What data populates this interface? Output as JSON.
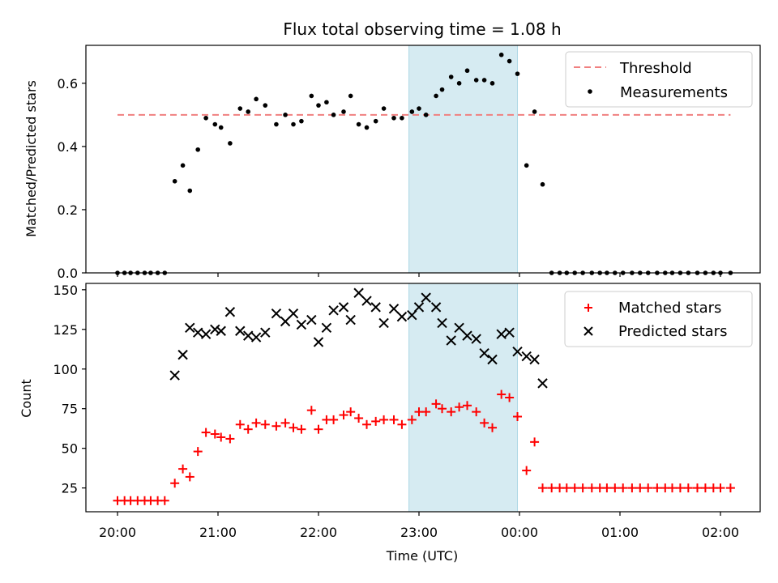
{
  "chart_data": [
    {
      "type": "scatter",
      "title": "Flux total observing time = 1.08 h",
      "ylabel": "Matched/Predicted stars",
      "xlabel": "",
      "ylim": [
        0,
        0.72
      ],
      "yticks": [
        0.0,
        0.2,
        0.4,
        0.6
      ],
      "ytick_labels": [
        "0.0",
        "0.2",
        "0.4",
        "0.6"
      ],
      "xticks_hours": [
        0,
        1,
        2,
        3,
        4,
        5,
        6
      ],
      "legend_position": "top-right",
      "threshold": {
        "name": "Threshold",
        "value": 0.5,
        "x_start": 0.0,
        "x_end": 6.1,
        "color": "#f08080"
      },
      "highlight_span": {
        "x_start": 2.9,
        "x_end": 3.98,
        "color": "#add8e6"
      },
      "series": [
        {
          "name": "Measurements",
          "color": "#000000",
          "x": [
            0.0,
            0.07,
            0.13,
            0.2,
            0.27,
            0.33,
            0.4,
            0.47,
            0.57,
            0.65,
            0.72,
            0.8,
            0.88,
            0.97,
            1.03,
            1.12,
            1.22,
            1.3,
            1.38,
            1.47,
            1.58,
            1.67,
            1.75,
            1.83,
            1.93,
            2.0,
            2.08,
            2.15,
            2.25,
            2.32,
            2.4,
            2.48,
            2.57,
            2.65,
            2.75,
            2.83,
            2.93,
            3.0,
            3.07,
            3.17,
            3.23,
            3.32,
            3.4,
            3.48,
            3.57,
            3.65,
            3.73,
            3.82,
            3.9,
            3.98,
            4.07,
            4.15,
            4.23,
            4.32,
            4.4,
            4.47,
            4.55,
            4.63,
            4.72,
            4.8,
            4.87,
            4.95,
            5.03,
            5.12,
            5.2,
            5.28,
            5.37,
            5.45,
            5.52,
            5.6,
            5.68,
            5.77,
            5.85,
            5.93,
            6.0,
            6.1
          ],
          "values": [
            0.0,
            0.0,
            0.0,
            0.0,
            0.0,
            0.0,
            0.0,
            0.0,
            0.29,
            0.34,
            0.26,
            0.39,
            0.49,
            0.47,
            0.46,
            0.41,
            0.52,
            0.51,
            0.55,
            0.53,
            0.47,
            0.5,
            0.47,
            0.48,
            0.56,
            0.53,
            0.54,
            0.5,
            0.51,
            0.56,
            0.47,
            0.46,
            0.48,
            0.52,
            0.49,
            0.49,
            0.51,
            0.52,
            0.5,
            0.56,
            0.58,
            0.62,
            0.6,
            0.64,
            0.61,
            0.61,
            0.6,
            0.69,
            0.67,
            0.63,
            0.34,
            0.51,
            0.28,
            0.0,
            0.0,
            0.0,
            0.0,
            0.0,
            0.0,
            0.0,
            0.0,
            0.0,
            0.0,
            0.0,
            0.0,
            0.0,
            0.0,
            0.0,
            0.0,
            0.0,
            0.0,
            0.0,
            0.0,
            0.0,
            0.0,
            0.0
          ]
        }
      ]
    },
    {
      "type": "scatter",
      "title": "",
      "ylabel": "Count",
      "xlabel": "Time (UTC)",
      "ylim": [
        10,
        154
      ],
      "yticks": [
        25,
        50,
        75,
        100,
        125,
        150
      ],
      "ytick_labels": [
        "25",
        "50",
        "75",
        "100",
        "125",
        "150"
      ],
      "xticks_hours": [
        0,
        1,
        2,
        3,
        4,
        5,
        6
      ],
      "xtick_labels": [
        "20:00",
        "21:00",
        "22:00",
        "23:00",
        "00:00",
        "01:00",
        "02:00"
      ],
      "legend_position": "top-right",
      "highlight_span": {
        "x_start": 2.9,
        "x_end": 3.98,
        "color": "#add8e6"
      },
      "series": [
        {
          "name": "Matched stars",
          "color": "#ff0000",
          "marker": "+",
          "x": [
            0.0,
            0.07,
            0.13,
            0.2,
            0.27,
            0.33,
            0.4,
            0.47,
            0.57,
            0.65,
            0.72,
            0.8,
            0.88,
            0.97,
            1.03,
            1.12,
            1.22,
            1.3,
            1.38,
            1.47,
            1.58,
            1.67,
            1.75,
            1.83,
            1.93,
            2.0,
            2.08,
            2.15,
            2.25,
            2.32,
            2.4,
            2.48,
            2.57,
            2.65,
            2.75,
            2.83,
            2.93,
            3.0,
            3.07,
            3.17,
            3.23,
            3.32,
            3.4,
            3.48,
            3.57,
            3.65,
            3.73,
            3.82,
            3.9,
            3.98,
            4.07,
            4.15,
            4.23,
            4.32,
            4.4,
            4.47,
            4.55,
            4.63,
            4.72,
            4.8,
            4.87,
            4.95,
            5.03,
            5.12,
            5.2,
            5.28,
            5.37,
            5.45,
            5.52,
            5.6,
            5.68,
            5.77,
            5.85,
            5.93,
            6.0,
            6.1
          ],
          "values": [
            17,
            17,
            17,
            17,
            17,
            17,
            17,
            17,
            28,
            37,
            32,
            48,
            60,
            59,
            57,
            56,
            65,
            62,
            66,
            65,
            64,
            66,
            63,
            62,
            74,
            62,
            68,
            68,
            71,
            73,
            69,
            65,
            67,
            68,
            68,
            65,
            68,
            73,
            73,
            78,
            75,
            73,
            76,
            77,
            73,
            66,
            63,
            84,
            82,
            70,
            36,
            54,
            25,
            25,
            25,
            25,
            25,
            25,
            25,
            25,
            25,
            25,
            25,
            25,
            25,
            25,
            25,
            25,
            25,
            25,
            25,
            25,
            25,
            25,
            25,
            25
          ]
        },
        {
          "name": "Predicted stars",
          "color": "#000000",
          "marker": "x",
          "x": [
            0.57,
            0.65,
            0.72,
            0.8,
            0.88,
            0.97,
            1.03,
            1.12,
            1.22,
            1.3,
            1.38,
            1.47,
            1.58,
            1.67,
            1.75,
            1.83,
            1.93,
            2.0,
            2.08,
            2.15,
            2.25,
            2.32,
            2.4,
            2.48,
            2.57,
            2.65,
            2.75,
            2.83,
            2.93,
            3.0,
            3.07,
            3.17,
            3.23,
            3.32,
            3.4,
            3.48,
            3.57,
            3.65,
            3.73,
            3.82,
            3.9,
            3.98,
            4.07,
            4.15,
            4.23
          ],
          "values": [
            96,
            109,
            126,
            123,
            122,
            125,
            124,
            136,
            124,
            121,
            120,
            123,
            135,
            130,
            135,
            128,
            131,
            117,
            126,
            137,
            139,
            131,
            148,
            143,
            139,
            129,
            138,
            133,
            134,
            139,
            145,
            139,
            129,
            118,
            126,
            121,
            119,
            110,
            106,
            122,
            123,
            111,
            108,
            106,
            91
          ]
        }
      ]
    }
  ]
}
